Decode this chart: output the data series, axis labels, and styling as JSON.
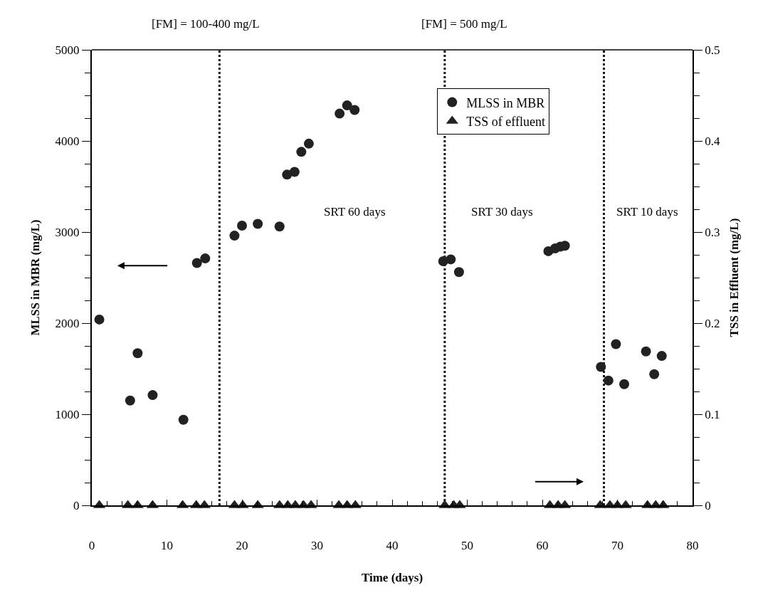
{
  "chart_data": {
    "type": "scatter",
    "xlabel": "Time (days)",
    "ylabel": "MLSS in MBR (mg/L)",
    "y2label": "TSS in Effluent (mg/L)",
    "xlim": [
      0,
      80
    ],
    "xticks": [
      0,
      10,
      20,
      30,
      40,
      50,
      60,
      70,
      80
    ],
    "ylim": [
      0,
      5000
    ],
    "yticks": [
      0,
      1000,
      2000,
      3000,
      4000,
      5000
    ],
    "y2lim": [
      0,
      0.5
    ],
    "y2ticks": [
      0,
      0.1,
      0.2,
      0.3,
      0.4,
      0.5
    ],
    "grid": false,
    "legend": "top right",
    "series": [
      {
        "name": "MLSS in MBR",
        "color": "#222222",
        "marker": "circle",
        "x": [
          1,
          5.1,
          6.1,
          8.1,
          12.2,
          14,
          15.1,
          19,
          20,
          22.1,
          25,
          26,
          27,
          27.9,
          28.9,
          33,
          34,
          35,
          46.8,
          47.8,
          48.9,
          60.8,
          61.7,
          62.4,
          63,
          67.8,
          68.8,
          69.8,
          70.9,
          73.8,
          74.9,
          75.9
        ],
        "values": [
          2040,
          1150,
          1670,
          1210,
          940,
          2660,
          2710,
          2960,
          3070,
          3090,
          3060,
          3630,
          3660,
          3880,
          3970,
          4300,
          4390,
          4340,
          2680,
          2700,
          2560,
          2790,
          2820,
          2840,
          2850,
          1520,
          1370,
          1770,
          1330,
          1690,
          1440,
          1640
        ]
      },
      {
        "name": "TSS of effluent",
        "color": "#222222",
        "marker": "triangle",
        "axis": "y2",
        "x": [
          1,
          4.8,
          6.1,
          8.1,
          12.1,
          13.9,
          15,
          19,
          20.1,
          22.1,
          25,
          26.1,
          27.1,
          28.2,
          29.2,
          32.9,
          34,
          35.1,
          47,
          48.2,
          49,
          61,
          62.1,
          63,
          67.7,
          69,
          70,
          71.1,
          74,
          75.1,
          76.1
        ],
        "values": [
          0,
          0,
          0,
          0,
          0,
          0,
          0,
          0,
          0,
          0,
          0,
          0,
          0,
          0,
          0,
          0,
          0,
          0,
          0,
          0,
          0,
          0,
          0,
          0,
          0,
          0,
          0,
          0,
          0,
          0,
          0
        ]
      }
    ],
    "ref_lines": [
      {
        "axis": "x",
        "value": 17,
        "line_style": "dotted",
        "color": "#111111"
      },
      {
        "axis": "x",
        "value": 47,
        "line_style": "dotted",
        "color": "#111111"
      },
      {
        "axis": "x",
        "value": 68.2,
        "line_style": "dotted",
        "color": "#111111"
      }
    ],
    "annotations": [
      "[FM] = 100-400 mg/L",
      "[FM] = 500 mg/L",
      "SRT 60 days",
      "SRT 30 days",
      "SRT 10 days"
    ]
  }
}
